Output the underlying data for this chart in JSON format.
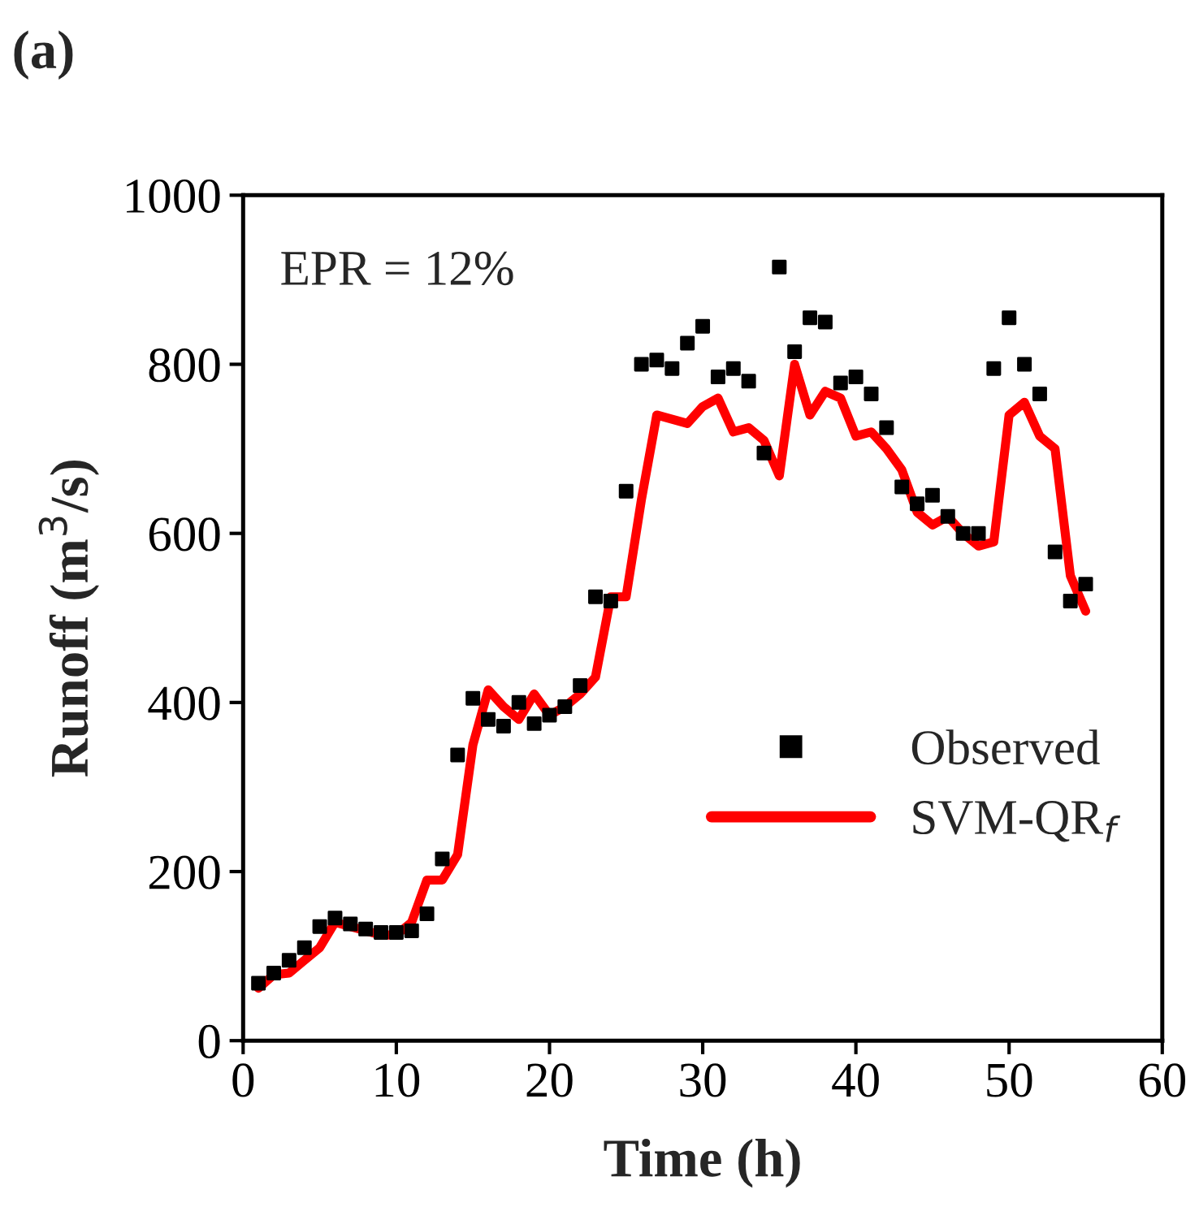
{
  "chart_data": {
    "type": "line",
    "title": "(a)",
    "xlabel": "Time (h)",
    "ylabel": "Runoff (m$^{3}$/s)",
    "annotations": [
      "EPR = 12%"
    ],
    "x": [
      1,
      2,
      3,
      4,
      5,
      6,
      7,
      8,
      9,
      10,
      11,
      12,
      13,
      14,
      15,
      16,
      17,
      18,
      19,
      20,
      21,
      22,
      23,
      24,
      25,
      26,
      27,
      28,
      29,
      30,
      31,
      32,
      33,
      34,
      35,
      36,
      37,
      38,
      39,
      40,
      41,
      42,
      43,
      44,
      45,
      46,
      47,
      48,
      49,
      50,
      51,
      52,
      53,
      54,
      55
    ],
    "series": [
      {
        "name": "Observed",
        "type": "scatter",
        "marker": "square",
        "color": "#000000",
        "values": [
          68,
          80,
          95,
          110,
          135,
          145,
          138,
          132,
          128,
          128,
          130,
          150,
          215,
          338,
          405,
          380,
          372,
          400,
          375,
          385,
          395,
          420,
          525,
          520,
          650,
          800,
          805,
          795,
          825,
          845,
          785,
          795,
          780,
          695,
          915,
          815,
          855,
          850,
          778,
          785,
          765,
          725,
          655,
          635,
          645,
          620,
          600,
          600,
          795,
          855,
          800,
          765,
          578,
          520,
          540
        ]
      },
      {
        "name": "SVM-QR$_{f}$",
        "marker": "none",
        "line_style": "solid",
        "color": "#ff0000",
        "values": [
          62,
          78,
          80,
          95,
          110,
          140,
          135,
          130,
          125,
          125,
          140,
          190,
          190,
          220,
          350,
          415,
          395,
          380,
          410,
          385,
          395,
          410,
          430,
          525,
          525,
          640,
          740,
          735,
          730,
          750,
          760,
          720,
          725,
          710,
          668,
          800,
          740,
          768,
          760,
          715,
          720,
          700,
          675,
          625,
          610,
          620,
          600,
          585,
          590,
          740,
          755,
          715,
          700,
          550,
          508
        ]
      }
    ],
    "xlim": [
      0,
      60
    ],
    "xticks": [
      0,
      10,
      20,
      30,
      40,
      50,
      60
    ],
    "ylim": [
      0,
      1000
    ],
    "yticks": [
      0,
      200,
      400,
      600,
      800,
      1000
    ],
    "grid": false,
    "legend": "right"
  }
}
